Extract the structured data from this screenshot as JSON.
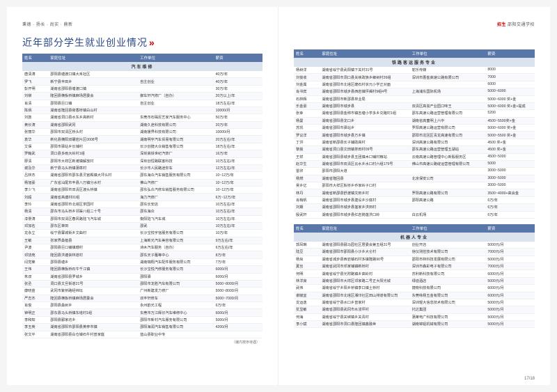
{
  "header_left": "秉德 · 扬长 · 尚实 · 鼎新",
  "header_right_tag": "招生",
  "header_right_school": "邵阳交通学校",
  "title": "近年部分学生就业创业情况",
  "columns": [
    "姓名",
    "家庭住址",
    "工作单位",
    "薪资"
  ],
  "section1_title": "汽车维修",
  "section1_rows": [
    [
      "唐清涛",
      "邵阳县塘渡口镇大禾社区",
      "",
      "40万/年"
    ],
    [
      "罗飞",
      "新宁县丰田乡",
      "自主创业",
      "40万/年"
    ],
    [
      "彭开明",
      "湖南省邵阳县塘渡口镇",
      "",
      "30万/年"
    ],
    [
      "刘柳",
      "隆回县横板桥镇麻场居委会",
      "御车轩汽修厂（自办）",
      "20万以上/年"
    ],
    [
      "肖清",
      "邵阳县巨口铺",
      "自主创业",
      "18万左右/年"
    ],
    [
      "陈炳",
      "湖南省隆回县荷香桥镇白山村",
      "",
      "10000/月"
    ],
    [
      "刘敦",
      "湖南省洞口县水东乡高新村",
      "东莞市石碣尼艺家汽车服务中心",
      "50万/年"
    ],
    [
      "黄长涛",
      "湖南省邵阳武冈",
      "湖南久途科技有限公司",
      "20万/年"
    ],
    [
      "张丽华",
      "邵阳市双清区桥头村",
      "湖南援界科技有限公司",
      "10000/月"
    ],
    [
      "袁华",
      "新化县横阳双碾岩片区0008号",
      "湖南明宇汽车贸易有限公司",
      "20万左右/年"
    ],
    [
      "艾保",
      "邵阳市驿站乡长铺村",
      "长沙创捷大众销售有限公司",
      "18万左右/年"
    ],
    [
      "罗翰武",
      "洞口县多雨大岭村1组",
      "深圳高铁世纪汽饰厂",
      "16万/年"
    ],
    [
      "廖清",
      "邵阳市大祥区新滩镇解放村",
      "深圳创恒路联客科技",
      "10万左右/年"
    ],
    [
      "谢及华",
      "新宁县马头桥镇蒲草村",
      "长沙市人民路迷你车",
      "12万左右/年"
    ],
    [
      "吕林杰",
      "湖南省邵阳市邵东县灵官殿镇大坪头村",
      "邵东海众汽车销售服务有限公司",
      "10~12万/年"
    ],
    [
      "杨旭豪",
      "广东省汕尾市丰县八万镇分水村",
      "佛山汽修厂",
      "10~12万/年"
    ],
    [
      "李少飞",
      "湖南省邵阳市双清区渡头桥镇",
      "邵东弘众汽修车销售服务有限公司",
      "10~12万/年"
    ],
    [
      "刘超",
      "湖南省高塘村01组",
      "海力汽修厂",
      "6万~12万/年"
    ],
    [
      "李玲",
      "湖南省邵阳市北塔区茶园村",
      "邵东长安店",
      "10万左右/年"
    ],
    [
      "杨清",
      "邵东市马头桥乡邻渠八组二十号",
      "邵东海众",
      "10万左右/年"
    ],
    [
      "漆景涛",
      "邵阳市双清区春风路陆飞汽车城",
      "衡阳陆飞汽车城",
      "10万左右/年"
    ],
    [
      "邓加名",
      "邵东区莘田",
      "邵武",
      "10万左右/年"
    ],
    [
      "龙永立",
      "绥宁县寨城街乡文曲村",
      "长沙宝悦宇信服务有限公司",
      "10万/年"
    ],
    [
      "王敏",
      "张家界桑植县",
      "上海新光汽车美容有限公司",
      "9万左右/年"
    ],
    [
      "尹波",
      "邵阳县巨口铺镇珊村",
      "诗木汽车服务（自办）",
      "6万左右/年"
    ],
    [
      "邓饶苑",
      "隆回县洪塘崇林道村",
      "邵东天子雁等中心",
      "8万/年"
    ],
    [
      "闫觉莱",
      "邵阳县塘乡",
      "湖南瑞翔汽车配件服务有限公司",
      "7万/年"
    ],
    [
      "王伟",
      "隆回县横板桥石牛千江镇",
      "长沙宝悦汽修服务有限公司",
      "6000/月"
    ],
    [
      "朱双",
      "湖南省邵阳县罗城乡",
      "邵阳驿",
      "6000/月"
    ],
    [
      "张丞",
      "洞口县文旦街道21号",
      "邵阳市龙胜汽车有限公司",
      "5000~8000/月"
    ],
    [
      "康晓苗",
      "武冈市紫桥路经纬坛",
      "广州新建发力修厂",
      "5000~8000/月"
    ],
    [
      "严志杰",
      "隆回县横板桥镇麻场居委会",
      "双丰轩修车",
      "5000~7000/月"
    ],
    [
      "肖俊",
      "邵阳县桑树乡",
      "永州韵光工程",
      "6万/年"
    ],
    [
      "钟明正",
      "邵东县马头桥镇东塔村1组",
      "东莞市万江辉仔汽车维修中心",
      "6000/月"
    ],
    [
      "李和知",
      "邵阳县郦家坊乡",
      "邵阳市新村汽车服务有限公司",
      "5000/月"
    ],
    [
      "李玉英",
      "湖南省邵阳市邵阳县黄亭市镇",
      "邵阳海润汽车销售有限公司",
      "4200/月"
    ],
    [
      "张文平",
      "湖南省邵阳县白仓镇石牛村曾家庭",
      "蓝山县职业中专",
      ""
    ]
  ],
  "note1": "（编内按序待遇）",
  "section2_title": "铁路客运服务专业",
  "section2_rows": [
    [
      "杨树洋",
      "湖南省绥宁县武阳镇下关村31号",
      "鸵乐传媒",
      "8000"
    ],
    [
      "刘俊收",
      "湖南省邵阳市洞口县关峡政族乡榔树村26组",
      "深圳市惠盐高速公路有限公司",
      "7000"
    ],
    [
      "刘金属",
      "湖南省邵阳市北塔区磨石村状元小学正对面",
      "",
      "6000"
    ],
    [
      "肖书宾",
      "湖南省邵阳市城步县西岩镇坪阉村9组4号",
      "上海浦东国际机场",
      "5000~6000"
    ],
    [
      "石林辉",
      "湖南省邵阳市新邵县林业局",
      "",
      "5000~6000 奖+金"
    ],
    [
      "乐金豪",
      "湖南省邵阳市城步县",
      "双清区高崀产业园口味王",
      "5000~6000 奖+金+提成"
    ],
    [
      "张幸",
      "湖南省邵阳县金称市镇吉塘小学多乡兑赌村1组",
      "邵东高速公路运营管理有限公司",
      "5200"
    ],
    [
      "杨曼",
      "湖南省邵阳县龙口乡",
      "湖南省高童明上六中",
      "4500~5500奖+金"
    ],
    [
      "苏凯",
      "湖南省邵阳市驿站乡",
      "罗阳高速公路运营有限公司",
      "5000~6000 奖+金"
    ],
    [
      "罗议洋",
      "湖南省邵阳市城步县万乡镇",
      "邵阳市龙回区青龙高速有限公司",
      "5000~5500 奖+金"
    ],
    [
      "丁洪",
      "湖南省新邵县长子辅助高村",
      "深圳高速公路有限公司",
      "4500 奖+金"
    ],
    [
      "黎晨",
      "湖南省洞口县文田镇茶田村09号",
      "邵东高速公路运营管理五湖站",
      "4500 奖+金"
    ],
    [
      "王祥",
      "湖南省邵阳县城步县五团镇木口铺村粮站",
      "云南高速公路管理中心新殷服务区",
      "4500~5000"
    ],
    [
      "赵华生",
      "湖南省邵阳市双清区云水乡水口村六组179号",
      "佛山市高速公路绽运营管理有限公司",
      "5000"
    ],
    [
      "雷卯",
      "邵阳市邵阳大道",
      "",
      "3000~5000"
    ],
    [
      "杨燃",
      "湖南省隆回县",
      "北京保安公司",
      "3000~5000"
    ],
    [
      "吴乡亿",
      "邵阳市大祥区板桥乡乔家岭子口村",
      "",
      "3000~5000"
    ],
    [
      "林丹",
      "湖南省新邵县舒渡镇文田乡村",
      "罗阳高速公路有限公司",
      "3500~4000+高会金"
    ],
    [
      "肖梢帆",
      "湖南省邵阳市城步县建设乡沙底村",
      "邵阳高速公路",
      "6万/年"
    ],
    [
      "刘期",
      "湖南省邵阳市城步县莲家乡洪田村",
      "",
      "6万/年"
    ],
    [
      "殷武轩",
      "湖南省邵阳市城步县红岩岗莲洪口岭",
      "白云机场",
      "6万/年"
    ]
  ],
  "section3_title": "机器人专业",
  "section3_rows": [
    [
      "郭凤琳",
      "湖南省邵阳县郦马园社区居委会第五组31号",
      "创业开店",
      "5000元/月"
    ],
    [
      "陆豆",
      "湖南省邵阳市邵阳县小沙乡大仑村",
      "信仪测控技术有限公司",
      "7000元/月"
    ],
    [
      "杨尚",
      "湖南省城步县西岩镇石村多镇隆路90号",
      "邵阳市林科技发展有限公司",
      "5000元/月"
    ],
    [
      "夏丝",
      "湖南省武冈市邓家铺镇新桥村",
      "深圳市森彩电子有限公司",
      "7000元/月"
    ],
    [
      "何明",
      "湖南省绥宁县光附路镇乡高岭村",
      "苏利新科技有限公司",
      "6000元/月"
    ],
    [
      "林洋良",
      "湖南省邵阳市大祥区邓家路二号正大阳光城",
      "绿迪酒店",
      "5000元/月"
    ],
    [
      "武伟",
      "湖南省绥宁乡阳乡桥镇李口镇土桥村",
      "捷晓科技有限公司",
      "6000元/月"
    ],
    [
      "谢毓宜",
      "湖南省邵阳市北塔区湘印社区田山排道有限公司",
      "东莞咏杨五金有限公司",
      "6000元/月"
    ],
    [
      "龙运逸",
      "湖南省绥宁县水口乡曾家村",
      "深圳琨大信息技术有限公司",
      "5000元/月"
    ],
    [
      "犹显敏",
      "湖南省邵阳县武冈市水浸坪村",
      "托达集团",
      "5000元/月"
    ],
    [
      "何海",
      "湖南省绥宁县关峡镇乡关青村",
      "蒲莱电广科技有限公司",
      "5000元/月"
    ],
    [
      "李小斌",
      "湖南省邵阳市洞口县隆回镇鑫融世",
      "湖南锦铝机械有限公司",
      "5000元/月"
    ]
  ],
  "page_num": "17/18"
}
